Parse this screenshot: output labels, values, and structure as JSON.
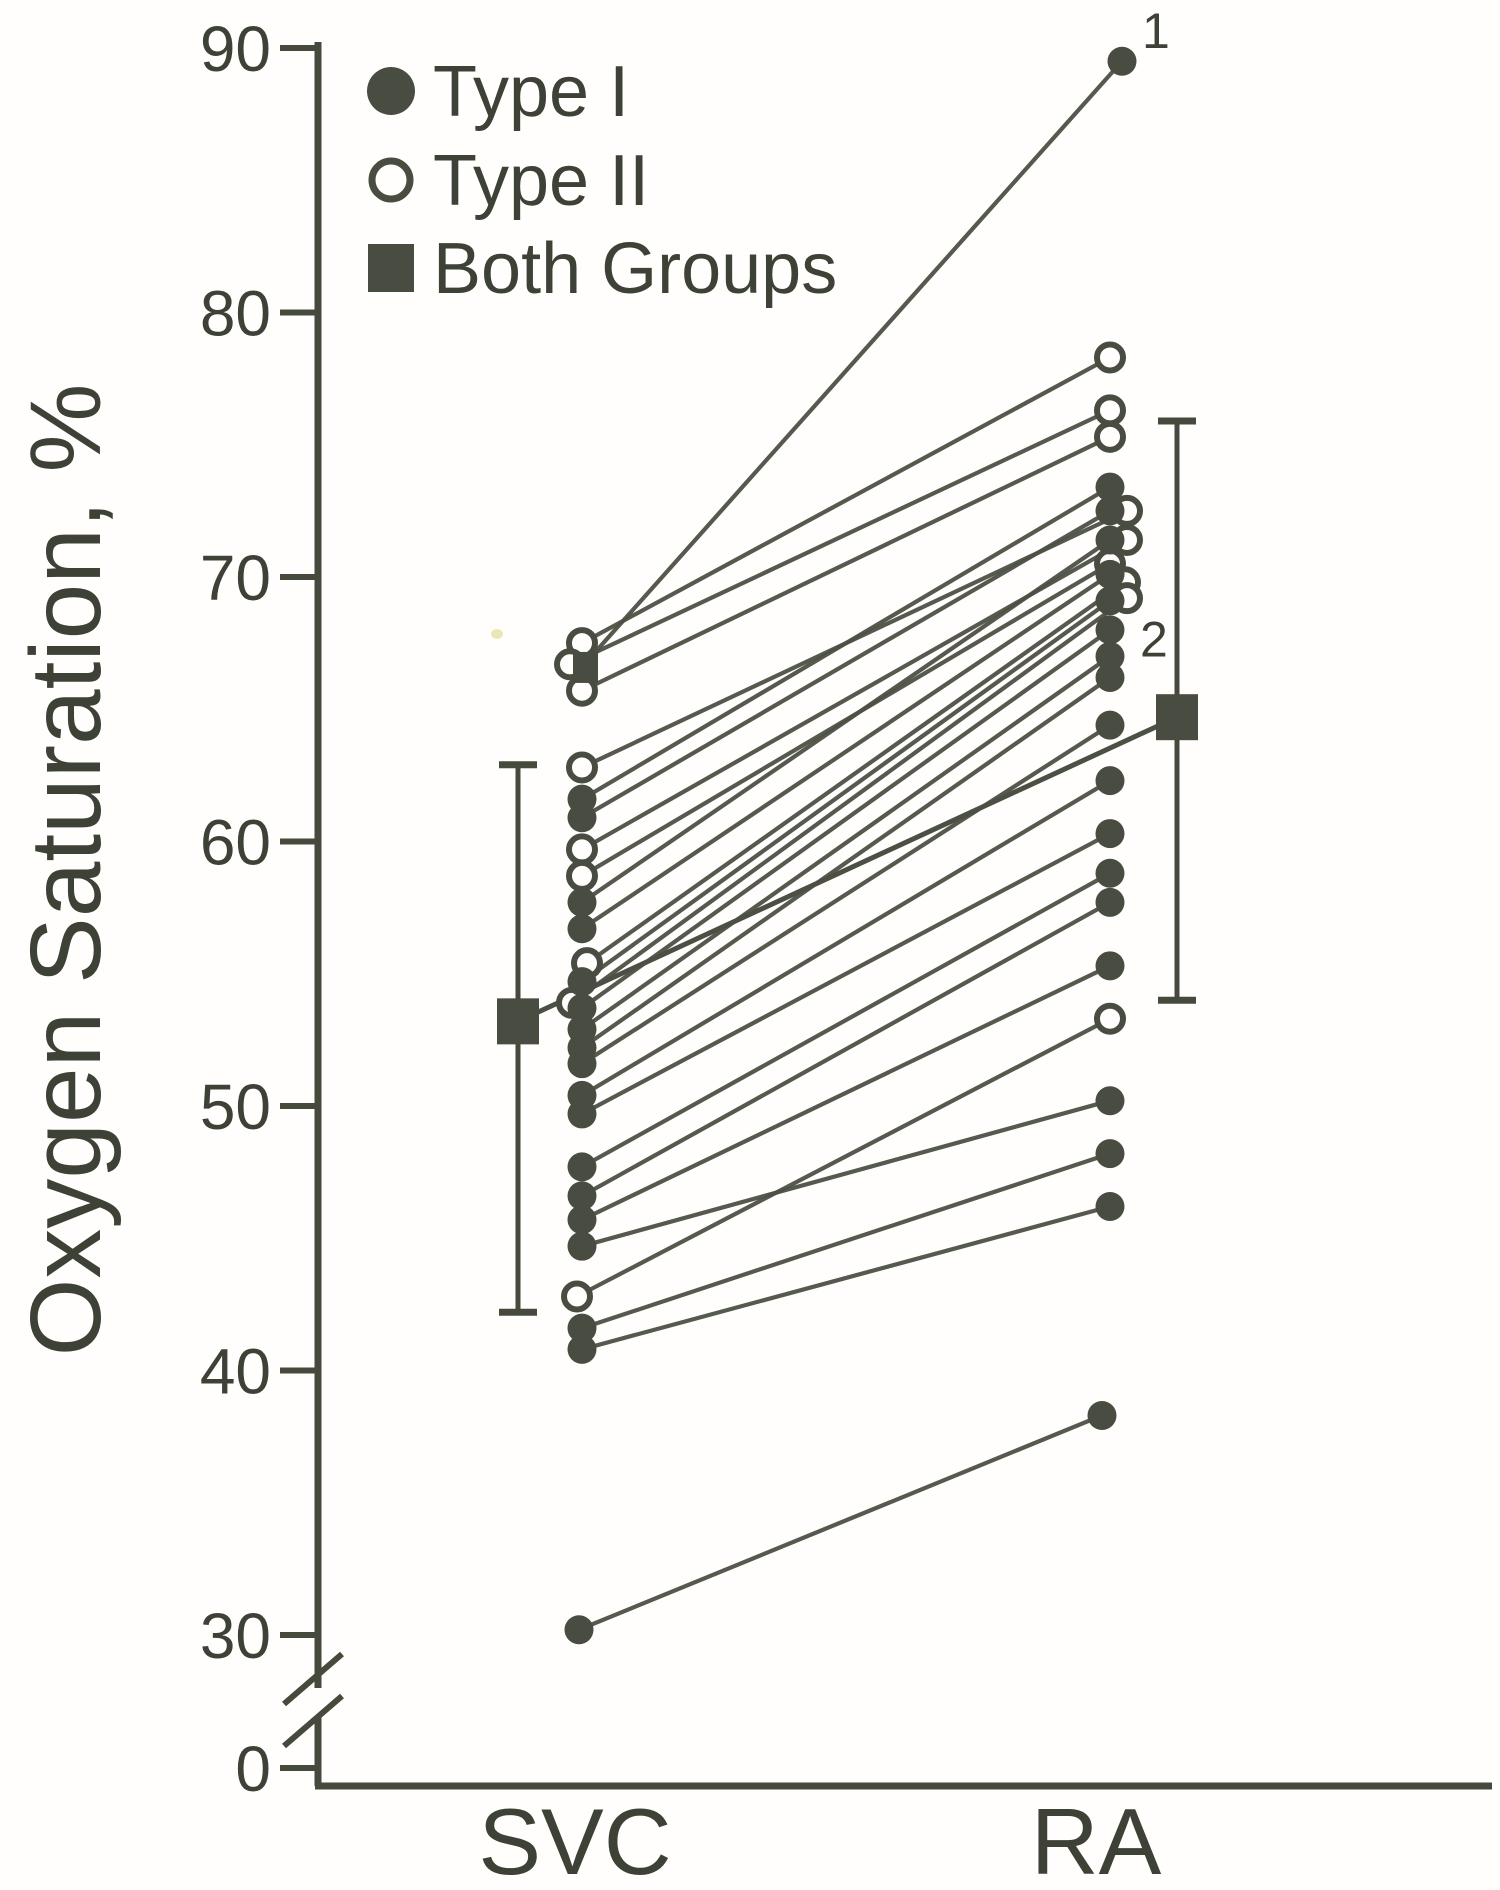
{
  "figure": {
    "background": "#fffefd",
    "ink_color": "#3d4136",
    "marker_color": "#494d41",
    "line_color": "#4c5044",
    "axis_color": "#454a3d",
    "artifact_color": "#e6e2a8"
  },
  "chart_data": {
    "type": "line",
    "subtype": "paired-slope-chart",
    "title": "",
    "xlabel": "",
    "ylabel": "Oxygen Saturation, %",
    "categories": [
      "SVC",
      "RA"
    ],
    "y_ticks": [
      90,
      80,
      70,
      60,
      50,
      40,
      30,
      0
    ],
    "ylim": [
      30,
      90
    ],
    "axis_break_between": [
      30,
      0
    ],
    "grid": false,
    "legend_position": "top-left-inside",
    "legend": [
      {
        "marker": "filled-circle",
        "label": "Type I"
      },
      {
        "marker": "open-circle",
        "label": "Type II"
      },
      {
        "marker": "filled-square",
        "label": "Both Groups"
      }
    ],
    "series": [
      {
        "name": "Type I",
        "marker": "filled-circle",
        "pairs": [
          {
            "svc": 66.6,
            "ra": 89.5,
            "svc_marker": "square",
            "ra_dx": 12,
            "annotation": "1"
          },
          {
            "svc": 61.6,
            "ra": 73.4
          },
          {
            "svc": 60.9,
            "ra": 72.5
          },
          {
            "svc": 57.7,
            "ra": 71.4
          },
          {
            "svc": 56.7,
            "ra": 70.1
          },
          {
            "svc": 54.7,
            "ra": 69.1
          },
          {
            "svc": 53.7,
            "ra": 68.0
          },
          {
            "svc": 52.9,
            "ra": 67.0
          },
          {
            "svc": 52.2,
            "ra": 66.2
          },
          {
            "svc": 51.6,
            "ra": 64.4
          },
          {
            "svc": 50.4,
            "ra": 62.3
          },
          {
            "svc": 49.7,
            "ra": 60.3
          },
          {
            "svc": 47.7,
            "ra": 58.8
          },
          {
            "svc": 46.6,
            "ra": 57.7
          },
          {
            "svc": 45.7,
            "ra": 55.3
          },
          {
            "svc": 44.7,
            "ra": 50.2
          },
          {
            "svc": 41.6,
            "ra": 48.2
          },
          {
            "svc": 40.8,
            "ra": 46.2
          },
          {
            "svc": 30.2,
            "ra": 38.3,
            "svc_dx": -3,
            "ra_dx": -8
          }
        ]
      },
      {
        "name": "Type II",
        "marker": "open-circle",
        "pairs": [
          {
            "svc": 67.5,
            "ra": 78.3
          },
          {
            "svc": 66.7,
            "ra": 76.3,
            "svc_dx": -12
          },
          {
            "svc": 65.7,
            "ra": 75.3
          },
          {
            "svc": 62.8,
            "ra": 72.5,
            "ra_dx": 17
          },
          {
            "svc": 59.7,
            "ra": 71.4,
            "ra_dx": 17
          },
          {
            "svc": 58.7,
            "ra": 70.5
          },
          {
            "svc": 55.4,
            "ra": 69.8,
            "svc_dx": 5,
            "ra_dx": 15
          },
          {
            "svc": 53.9,
            "ra": 69.2,
            "svc_dx": -10,
            "ra_dx": 17
          },
          {
            "svc": 42.8,
            "ra": 53.3,
            "svc_dx": -5
          }
        ]
      }
    ],
    "means": {
      "name": "Both Groups",
      "marker": "filled-square",
      "connected_by_line": true,
      "svc": {
        "mean": 53.2,
        "upper": 62.9,
        "lower": 42.2
      },
      "ra": {
        "mean": 64.7,
        "upper": 75.9,
        "lower": 54.0
      }
    },
    "annotations": [
      {
        "text": "1",
        "column": "ra",
        "value": 90.6,
        "dx": 32
      },
      {
        "text": "2",
        "column": "ra",
        "value": 67.6,
        "dx": 30
      }
    ]
  }
}
